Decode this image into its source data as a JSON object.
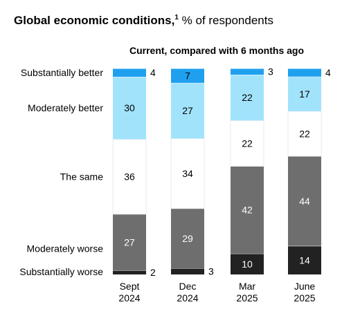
{
  "chart_data": {
    "type": "bar",
    "stacked": true,
    "title": "Global economic conditions,",
    "title_footnote": "1",
    "title_suffix": " % of respondents",
    "subtitle": "Current, compared with 6 months ago",
    "categories": [
      [
        "Sept",
        "2024"
      ],
      [
        "Dec",
        "2024"
      ],
      [
        "Mar",
        "2025"
      ],
      [
        "June",
        "2025"
      ]
    ],
    "series": [
      {
        "name": "Substantially worse",
        "color": "#222222",
        "label_color": "#ffffff",
        "values": [
          2,
          3,
          10,
          14
        ]
      },
      {
        "name": "Moderately worse",
        "color": "#6e6e6e",
        "label_color": "#ffffff",
        "values": [
          27,
          29,
          42,
          44
        ]
      },
      {
        "name": "The same",
        "color": "#ffffff",
        "label_color": "#000000",
        "values": [
          36,
          34,
          22,
          22
        ]
      },
      {
        "name": "Moderately better",
        "color": "#a2e3fc",
        "label_color": "#000000",
        "values": [
          30,
          27,
          22,
          17
        ]
      },
      {
        "name": "Substantially better",
        "color": "#1fa0ef",
        "label_color": "#000000",
        "values": [
          4,
          7,
          3,
          4
        ]
      }
    ],
    "ylim": [
      0,
      100
    ],
    "legend_position": "left"
  }
}
